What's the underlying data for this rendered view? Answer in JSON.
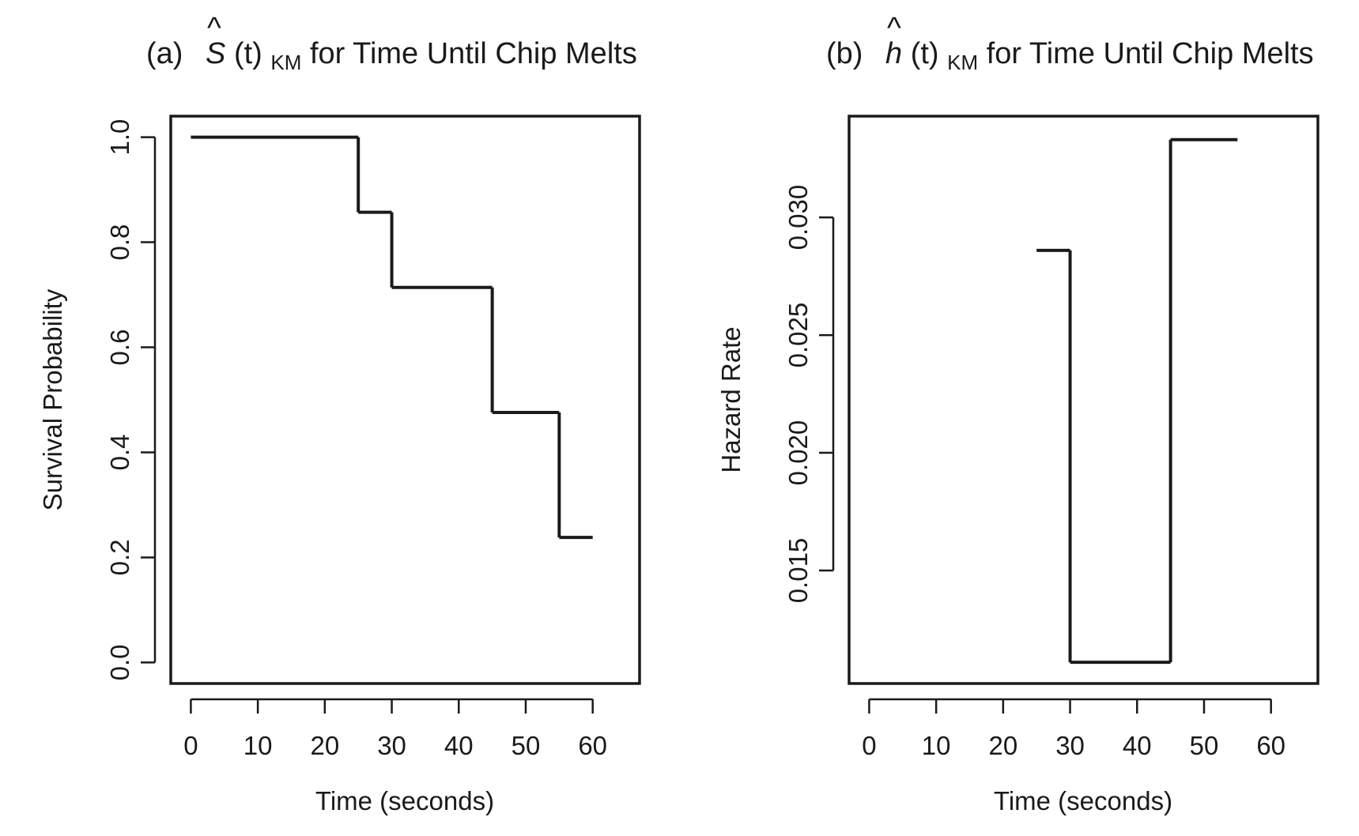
{
  "chart_data": [
    {
      "type": "line",
      "step": true,
      "title": {
        "prefix": "(a)",
        "symbol": "S",
        "arg": "(t)",
        "sub": "KM",
        "rest": " for Time Until Chip Melts"
      },
      "xlabel": "Time (seconds)",
      "ylabel": "Survival Probability",
      "xlim": [
        -3,
        67
      ],
      "ylim": [
        -0.04,
        1.04
      ],
      "xticks": [
        0,
        10,
        20,
        30,
        40,
        50,
        60
      ],
      "xtick_labels": [
        "0",
        "10",
        "20",
        "30",
        "40",
        "50",
        "60"
      ],
      "yticks": [
        0.0,
        0.2,
        0.4,
        0.6,
        0.8,
        1.0
      ],
      "ytick_labels": [
        "0.0",
        "0.2",
        "0.4",
        "0.6",
        "0.8",
        "1.0"
      ],
      "segments": [
        {
          "x0": 0,
          "x1": 25,
          "y": 1.0
        },
        {
          "x0": 25,
          "x1": 30,
          "y": 0.857
        },
        {
          "x0": 30,
          "x1": 45,
          "y": 0.714
        },
        {
          "x0": 45,
          "x1": 55,
          "y": 0.476
        },
        {
          "x0": 55,
          "x1": 60,
          "y": 0.238
        }
      ],
      "connected": true,
      "grid": false
    },
    {
      "type": "line",
      "step": true,
      "title": {
        "prefix": "(b)",
        "symbol": "h",
        "arg": "(t)",
        "sub": "KM",
        "rest": " for Time Until Chip Melts"
      },
      "xlabel": "Time (seconds)",
      "ylabel": "Hazard Rate",
      "xlim": [
        -3,
        67
      ],
      "ylim": [
        0.0102,
        0.0343
      ],
      "xticks": [
        0,
        10,
        20,
        30,
        40,
        50,
        60
      ],
      "xtick_labels": [
        "0",
        "10",
        "20",
        "30",
        "40",
        "50",
        "60"
      ],
      "yticks": [
        0.015,
        0.02,
        0.025,
        0.03
      ],
      "ytick_labels": [
        "0.015",
        "0.020",
        "0.025",
        "0.030"
      ],
      "segments": [
        {
          "x0": 25,
          "x1": 30,
          "y": 0.0286
        },
        {
          "x0": 30,
          "x1": 45,
          "y": 0.0111
        },
        {
          "x0": 45,
          "x1": 55,
          "y": 0.0333
        }
      ],
      "connected": true,
      "grid": false
    }
  ]
}
